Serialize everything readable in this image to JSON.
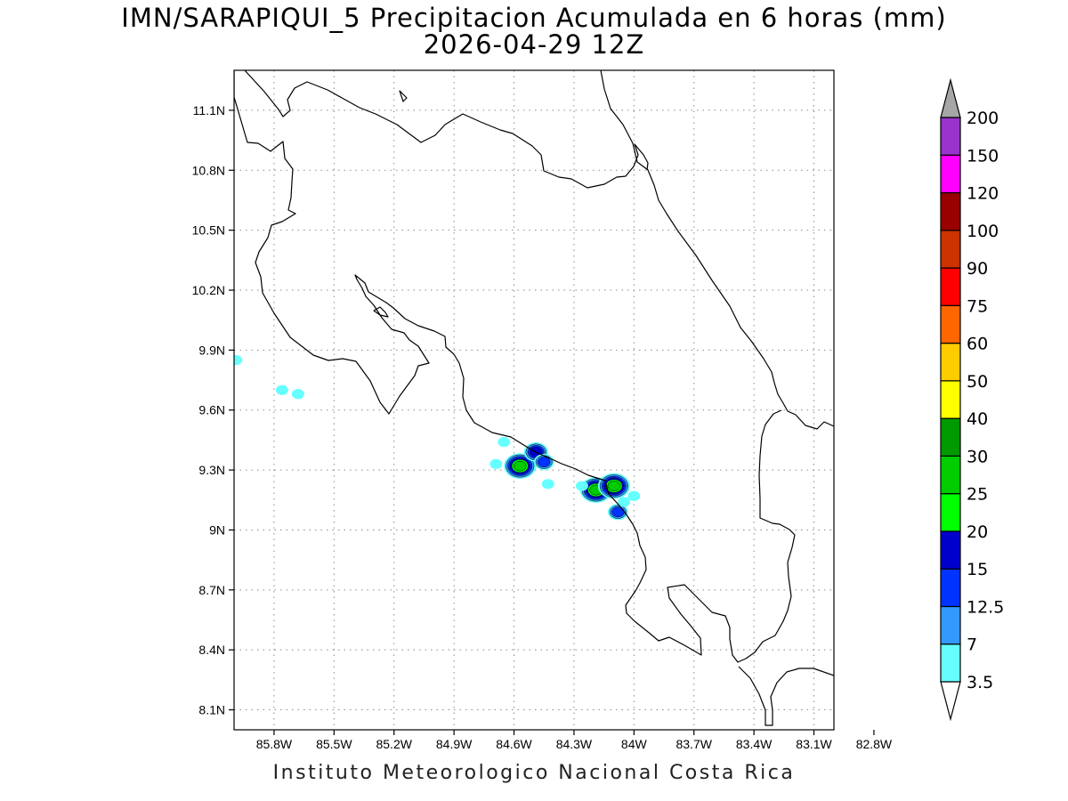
{
  "title": {
    "line1": "IMN/SARAPIQUI_5 Precipitacion Acumulada en 6 horas (mm)",
    "line2": "2026-04-29 12Z"
  },
  "footer": "Instituto Meteorologico Nacional Costa Rica",
  "map": {
    "lon_range": [
      -86.0,
      -83.0
    ],
    "lat_range": [
      8.0,
      11.3
    ],
    "grid": true,
    "lat_ticks": [
      {
        "value": 11.1,
        "label": "11.1N"
      },
      {
        "value": 10.8,
        "label": "10.8N"
      },
      {
        "value": 10.5,
        "label": "10.5N"
      },
      {
        "value": 10.2,
        "label": "10.2N"
      },
      {
        "value": 9.9,
        "label": "9.9N"
      },
      {
        "value": 9.6,
        "label": "9.6N"
      },
      {
        "value": 9.3,
        "label": "9.3N"
      },
      {
        "value": 9.0,
        "label": "9N"
      },
      {
        "value": 8.7,
        "label": "8.7N"
      },
      {
        "value": 8.4,
        "label": "8.4N"
      },
      {
        "value": 8.1,
        "label": "8.1N"
      }
    ],
    "lon_ticks": [
      {
        "value": -85.8,
        "label": "85.8W"
      },
      {
        "value": -85.5,
        "label": "85.5W"
      },
      {
        "value": -85.2,
        "label": "85.2W"
      },
      {
        "value": -84.9,
        "label": "84.9W"
      },
      {
        "value": -84.6,
        "label": "84.6W"
      },
      {
        "value": -84.3,
        "label": "84.3W"
      },
      {
        "value": -84.0,
        "label": "84W"
      },
      {
        "value": -83.7,
        "label": "83.7W"
      },
      {
        "value": -83.4,
        "label": "83.4W"
      },
      {
        "value": -83.1,
        "label": "83.1W"
      },
      {
        "value": -82.8,
        "label": "82.8W"
      }
    ]
  },
  "colorbar": {
    "levels": [
      "3.5",
      "7",
      "12.5",
      "15",
      "20",
      "25",
      "30",
      "40",
      "50",
      "60",
      "75",
      "90",
      "100",
      "120",
      "150",
      "200"
    ],
    "colors": [
      "#66ffff",
      "#3399ff",
      "#0033ff",
      "#0000cc",
      "#00ff00",
      "#00cc00",
      "#009900",
      "#ffff00",
      "#ffcc00",
      "#ff6600",
      "#ff0000",
      "#cc3300",
      "#990000",
      "#ff00ff",
      "#9933cc",
      "#f2f2f2",
      "#a6a6a6"
    ]
  },
  "precip_cells": [
    {
      "lon": -84.57,
      "lat": 9.32,
      "level": "25"
    },
    {
      "lon": -84.49,
      "lat": 9.39,
      "level": "15"
    },
    {
      "lon": -84.45,
      "lat": 9.34,
      "level": "12.5"
    },
    {
      "lon": -84.19,
      "lat": 9.2,
      "level": "25"
    },
    {
      "lon": -84.1,
      "lat": 9.22,
      "level": "25"
    },
    {
      "lon": -84.08,
      "lat": 9.09,
      "level": "12.5"
    },
    {
      "lon": -84.43,
      "lat": 9.23,
      "level": "3.5"
    },
    {
      "lon": -84.26,
      "lat": 9.22,
      "level": "3.5"
    },
    {
      "lon": -84.0,
      "lat": 9.17,
      "level": "3.5"
    },
    {
      "lon": -84.05,
      "lat": 9.14,
      "level": "3.5"
    },
    {
      "lon": -84.69,
      "lat": 9.33,
      "level": "3.5"
    },
    {
      "lon": -84.65,
      "lat": 9.44,
      "level": "3.5"
    },
    {
      "lon": -85.76,
      "lat": 9.7,
      "level": "3.5"
    },
    {
      "lon": -85.68,
      "lat": 9.68,
      "level": "3.5"
    },
    {
      "lon": -85.99,
      "lat": 9.85,
      "level": "3.5"
    }
  ]
}
